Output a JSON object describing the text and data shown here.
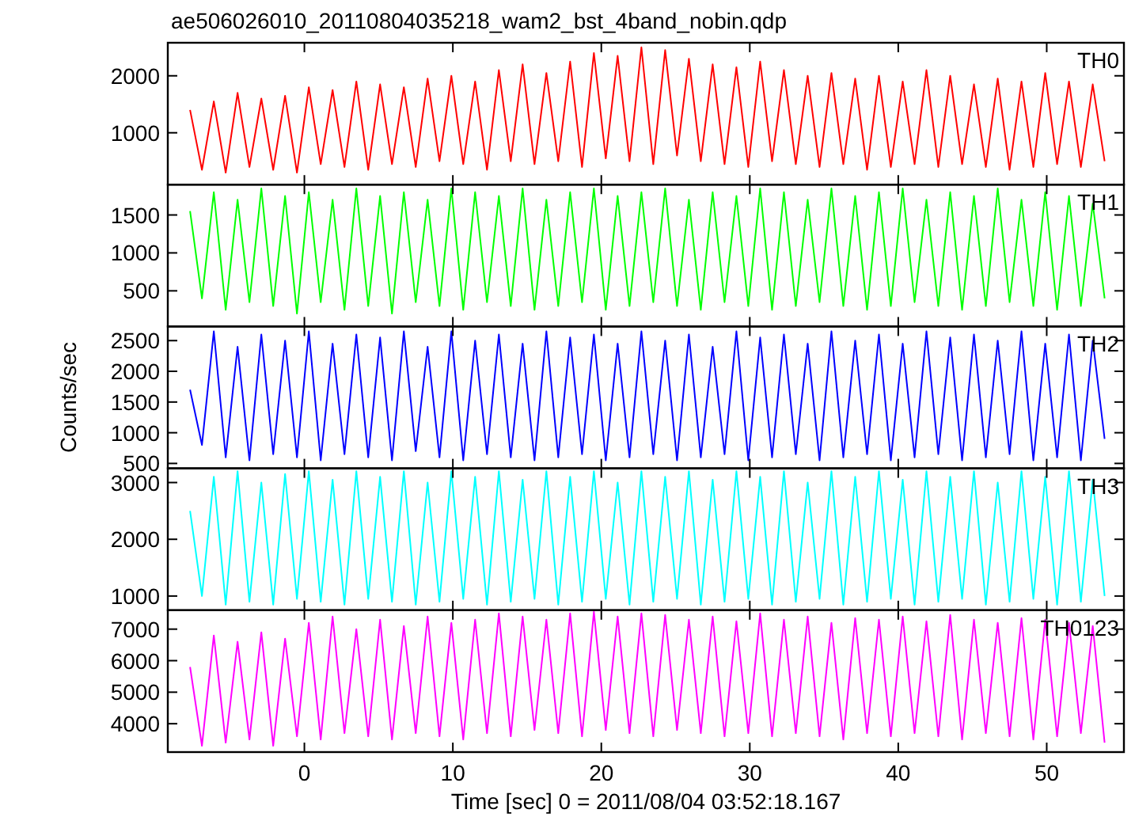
{
  "chart_data": [
    {
      "type": "line",
      "title": "ae506026010_20110804035218_wam2_bst_4band_nobin.qdp",
      "annotations": [
        "TH0"
      ],
      "tick_labels": "y",
      "xlim": [
        -9.2,
        55.2
      ],
      "xticks": [
        0,
        10,
        20,
        30,
        40,
        50
      ],
      "ylim": [
        90,
        2580
      ],
      "yticks": [
        1000,
        2000
      ],
      "x": [
        -7.7,
        -6.9,
        -6.1,
        -5.3,
        -4.5,
        -3.7,
        -2.9,
        -2.1,
        -1.3,
        -0.5,
        0.3,
        1.1,
        1.9,
        2.7,
        3.5,
        4.3,
        5.1,
        5.9,
        6.7,
        7.5,
        8.3,
        9.1,
        9.9,
        10.7,
        11.5,
        12.3,
        13.1,
        13.9,
        14.7,
        15.5,
        16.3,
        17.1,
        17.9,
        18.7,
        19.5,
        20.3,
        21.1,
        21.9,
        22.7,
        23.5,
        24.3,
        25.1,
        25.9,
        26.7,
        27.5,
        28.3,
        29.1,
        29.9,
        30.7,
        31.5,
        32.3,
        33.1,
        33.9,
        34.7,
        35.5,
        36.3,
        37.1,
        37.9,
        38.7,
        39.5,
        40.3,
        41.1,
        41.9,
        42.7,
        43.5,
        44.3,
        45.1,
        45.9,
        46.7,
        47.5,
        48.3,
        49.1,
        49.9,
        50.7,
        51.5,
        52.3,
        53.1,
        53.9
      ],
      "series": [
        {
          "color": "#ff0000",
          "values": [
            1400,
            350,
            1550,
            300,
            1700,
            400,
            1600,
            350,
            1650,
            300,
            1800,
            450,
            1750,
            400,
            1900,
            350,
            1850,
            450,
            1800,
            400,
            1950,
            500,
            2000,
            450,
            1900,
            350,
            2100,
            500,
            2200,
            450,
            2050,
            500,
            2250,
            400,
            2400,
            550,
            2350,
            500,
            2500,
            450,
            2450,
            600,
            2300,
            500,
            2200,
            450,
            2150,
            400,
            2250,
            500,
            2100,
            450,
            2000,
            400,
            2050,
            450,
            1950,
            350,
            2000,
            400,
            1900,
            450,
            2100,
            400,
            2000,
            450,
            1850,
            400,
            1950,
            350,
            1900,
            400,
            2050,
            450,
            1900,
            400,
            1850,
            500
          ]
        }
      ]
    },
    {
      "type": "line",
      "annotations": [
        "TH1"
      ],
      "tick_labels": "y",
      "xlim": [
        -9.2,
        55.2
      ],
      "xticks": [
        0,
        10,
        20,
        30,
        40,
        50
      ],
      "ylim": [
        30,
        1900
      ],
      "yticks": [
        500,
        1000,
        1500
      ],
      "x": [
        -7.7,
        -6.9,
        -6.1,
        -5.3,
        -4.5,
        -3.7,
        -2.9,
        -2.1,
        -1.3,
        -0.5,
        0.3,
        1.1,
        1.9,
        2.7,
        3.5,
        4.3,
        5.1,
        5.9,
        6.7,
        7.5,
        8.3,
        9.1,
        9.9,
        10.7,
        11.5,
        12.3,
        13.1,
        13.9,
        14.7,
        15.5,
        16.3,
        17.1,
        17.9,
        18.7,
        19.5,
        20.3,
        21.1,
        21.9,
        22.7,
        23.5,
        24.3,
        25.1,
        25.9,
        26.7,
        27.5,
        28.3,
        29.1,
        29.9,
        30.7,
        31.5,
        32.3,
        33.1,
        33.9,
        34.7,
        35.5,
        36.3,
        37.1,
        37.9,
        38.7,
        39.5,
        40.3,
        41.1,
        41.9,
        42.7,
        43.5,
        44.3,
        45.1,
        45.9,
        46.7,
        47.5,
        48.3,
        49.1,
        49.9,
        50.7,
        51.5,
        52.3,
        53.1,
        53.9
      ],
      "series": [
        {
          "color": "#00ff00",
          "values": [
            1550,
            400,
            1800,
            250,
            1700,
            350,
            1850,
            300,
            1750,
            200,
            1800,
            350,
            1700,
            250,
            1850,
            300,
            1750,
            200,
            1800,
            350,
            1700,
            300,
            1850,
            250,
            1800,
            350,
            1750,
            300,
            1850,
            250,
            1700,
            300,
            1800,
            350,
            1850,
            250,
            1750,
            300,
            1800,
            350,
            1850,
            300,
            1700,
            250,
            1800,
            350,
            1750,
            300,
            1850,
            250,
            1800,
            300,
            1700,
            350,
            1850,
            300,
            1750,
            250,
            1800,
            300,
            1850,
            350,
            1700,
            300,
            1800,
            250,
            1750,
            300,
            1850,
            350,
            1700,
            300,
            1800,
            250,
            1750,
            300,
            1650,
            400
          ]
        }
      ]
    },
    {
      "type": "line",
      "annotations": [
        "TH2"
      ],
      "ylabel": "Counts/sec",
      "tick_labels": "y",
      "xlim": [
        -9.2,
        55.2
      ],
      "xticks": [
        0,
        10,
        20,
        30,
        40,
        50
      ],
      "ylim": [
        420,
        2730
      ],
      "yticks": [
        500,
        1000,
        1500,
        2000,
        2500
      ],
      "x": [
        -7.7,
        -6.9,
        -6.1,
        -5.3,
        -4.5,
        -3.7,
        -2.9,
        -2.1,
        -1.3,
        -0.5,
        0.3,
        1.1,
        1.9,
        2.7,
        3.5,
        4.3,
        5.1,
        5.9,
        6.7,
        7.5,
        8.3,
        9.1,
        9.9,
        10.7,
        11.5,
        12.3,
        13.1,
        13.9,
        14.7,
        15.5,
        16.3,
        17.1,
        17.9,
        18.7,
        19.5,
        20.3,
        21.1,
        21.9,
        22.7,
        23.5,
        24.3,
        25.1,
        25.9,
        26.7,
        27.5,
        28.3,
        29.1,
        29.9,
        30.7,
        31.5,
        32.3,
        33.1,
        33.9,
        34.7,
        35.5,
        36.3,
        37.1,
        37.9,
        38.7,
        39.5,
        40.3,
        41.1,
        41.9,
        42.7,
        43.5,
        44.3,
        45.1,
        45.9,
        46.7,
        47.5,
        48.3,
        49.1,
        49.9,
        50.7,
        51.5,
        52.3,
        53.1,
        53.9
      ],
      "series": [
        {
          "color": "#0000ff",
          "values": [
            1700,
            800,
            2650,
            600,
            2400,
            550,
            2600,
            650,
            2500,
            600,
            2650,
            550,
            2450,
            650,
            2600,
            600,
            2550,
            550,
            2650,
            700,
            2400,
            600,
            2650,
            550,
            2500,
            650,
            2600,
            600,
            2450,
            550,
            2650,
            600,
            2550,
            650,
            2600,
            550,
            2450,
            600,
            2650,
            650,
            2500,
            550,
            2600,
            600,
            2400,
            650,
            2650,
            550,
            2550,
            600,
            2600,
            650,
            2450,
            550,
            2650,
            600,
            2500,
            650,
            2600,
            550,
            2450,
            600,
            2650,
            650,
            2550,
            550,
            2600,
            600,
            2500,
            650,
            2650,
            550,
            2450,
            600,
            2600,
            550,
            2500,
            900
          ]
        }
      ]
    },
    {
      "type": "line",
      "annotations": [
        "TH3"
      ],
      "tick_labels": "y",
      "xlim": [
        -9.2,
        55.2
      ],
      "xticks": [
        0,
        10,
        20,
        30,
        40,
        50
      ],
      "ylim": [
        750,
        3250
      ],
      "yticks": [
        1000,
        2000,
        3000
      ],
      "x": [
        -7.7,
        -6.9,
        -6.1,
        -5.3,
        -4.5,
        -3.7,
        -2.9,
        -2.1,
        -1.3,
        -0.5,
        0.3,
        1.1,
        1.9,
        2.7,
        3.5,
        4.3,
        5.1,
        5.9,
        6.7,
        7.5,
        8.3,
        9.1,
        9.9,
        10.7,
        11.5,
        12.3,
        13.1,
        13.9,
        14.7,
        15.5,
        16.3,
        17.1,
        17.9,
        18.7,
        19.5,
        20.3,
        21.1,
        21.9,
        22.7,
        23.5,
        24.3,
        25.1,
        25.9,
        26.7,
        27.5,
        28.3,
        29.1,
        29.9,
        30.7,
        31.5,
        32.3,
        33.1,
        33.9,
        34.7,
        35.5,
        36.3,
        37.1,
        37.9,
        38.7,
        39.5,
        40.3,
        41.1,
        41.9,
        42.7,
        43.5,
        44.3,
        45.1,
        45.9,
        46.7,
        47.5,
        48.3,
        49.1,
        49.9,
        50.7,
        51.5,
        52.3,
        53.1,
        53.9
      ],
      "series": [
        {
          "color": "#00ffff",
          "values": [
            2500,
            1000,
            3100,
            850,
            3200,
            900,
            3000,
            850,
            3150,
            950,
            3200,
            900,
            3050,
            850,
            3200,
            950,
            3100,
            900,
            3200,
            850,
            3000,
            900,
            3200,
            950,
            3100,
            850,
            3200,
            900,
            3050,
            950,
            3200,
            850,
            3100,
            900,
            3200,
            950,
            3000,
            850,
            3200,
            900,
            3100,
            950,
            3200,
            850,
            3050,
            900,
            3200,
            950,
            3100,
            850,
            3200,
            900,
            3000,
            950,
            3200,
            850,
            3100,
            900,
            3200,
            950,
            3050,
            850,
            3200,
            900,
            3100,
            950,
            3200,
            850,
            3000,
            900,
            3200,
            950,
            3100,
            850,
            3200,
            900,
            3050,
            1000
          ]
        }
      ]
    },
    {
      "type": "line",
      "annotations": [
        "TH0123"
      ],
      "xlabel": "Time [sec] 0 = 2011/08/04 03:52:18.167",
      "xlim": [
        -9.2,
        55.2
      ],
      "xticks": [
        0,
        10,
        20,
        30,
        40,
        50
      ],
      "ylim": [
        3100,
        7600
      ],
      "yticks": [
        4000,
        5000,
        6000,
        7000
      ],
      "x": [
        -7.7,
        -6.9,
        -6.1,
        -5.3,
        -4.5,
        -3.7,
        -2.9,
        -2.1,
        -1.3,
        -0.5,
        0.3,
        1.1,
        1.9,
        2.7,
        3.5,
        4.3,
        5.1,
        5.9,
        6.7,
        7.5,
        8.3,
        9.1,
        9.9,
        10.7,
        11.5,
        12.3,
        13.1,
        13.9,
        14.7,
        15.5,
        16.3,
        17.1,
        17.9,
        18.7,
        19.5,
        20.3,
        21.1,
        21.9,
        22.7,
        23.5,
        24.3,
        25.1,
        25.9,
        26.7,
        27.5,
        28.3,
        29.1,
        29.9,
        30.7,
        31.5,
        32.3,
        33.1,
        33.9,
        34.7,
        35.5,
        36.3,
        37.1,
        37.9,
        38.7,
        39.5,
        40.3,
        41.1,
        41.9,
        42.7,
        43.5,
        44.3,
        45.1,
        45.9,
        46.7,
        47.5,
        48.3,
        49.1,
        49.9,
        50.7,
        51.5,
        52.3,
        53.1,
        53.9
      ],
      "series": [
        {
          "color": "#ff00ff",
          "values": [
            5800,
            3300,
            6800,
            3400,
            6600,
            3500,
            6900,
            3300,
            6700,
            3600,
            7200,
            3500,
            7400,
            3700,
            7000,
            3600,
            7300,
            3500,
            7100,
            3700,
            7400,
            3600,
            7200,
            3500,
            7300,
            3700,
            7500,
            3600,
            7400,
            3800,
            7300,
            3700,
            7500,
            3600,
            7550,
            3800,
            7400,
            3700,
            7500,
            3600,
            7450,
            3800,
            7300,
            3700,
            7400,
            3600,
            7250,
            3700,
            7500,
            3600,
            7300,
            3700,
            7400,
            3600,
            7200,
            3500,
            7350,
            3700,
            7300,
            3600,
            7400,
            3700,
            7250,
            3600,
            7450,
            3500,
            7300,
            3700,
            7200,
            3600,
            7350,
            3500,
            7300,
            3600,
            7200,
            3700,
            7100,
            3400
          ]
        }
      ]
    }
  ]
}
